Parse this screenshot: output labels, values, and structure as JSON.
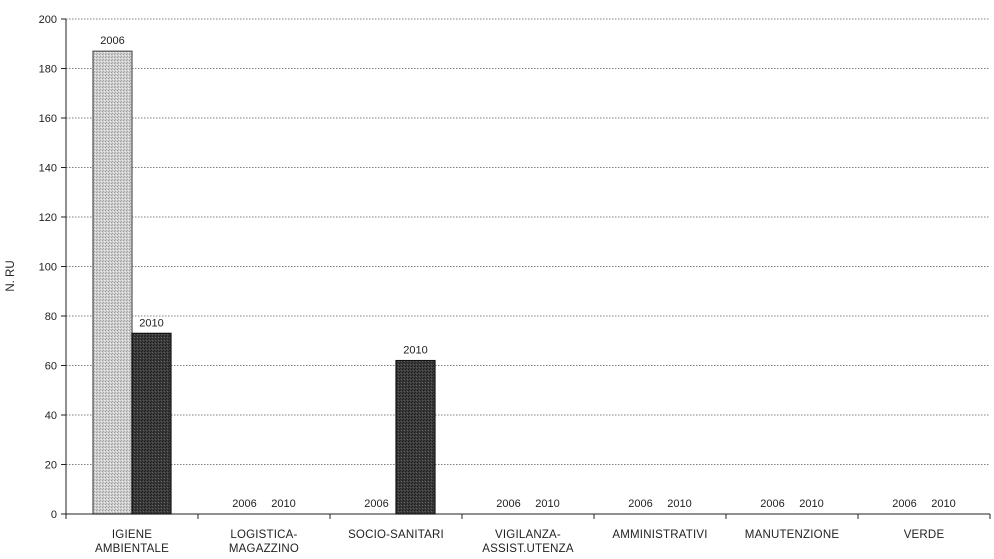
{
  "chart_data": {
    "type": "bar",
    "title": "",
    "xlabel": "",
    "ylabel": "N. RU",
    "ylim": [
      0,
      200
    ],
    "yticks": [
      0,
      20,
      40,
      60,
      80,
      100,
      120,
      140,
      160,
      180,
      200
    ],
    "grid": true,
    "legend": "none",
    "categories": [
      [
        "IGIENE",
        "AMBIENTALE"
      ],
      [
        "LOGISTICA-",
        "MAGAZZINO"
      ],
      [
        "SOCIO-SANITARI"
      ],
      [
        "VIGILANZA-",
        "ASSIST.UTENZA"
      ],
      [
        "AMMINISTRATIVI"
      ],
      [
        "MANUTENZIONE"
      ],
      [
        "VERDE"
      ]
    ],
    "series": [
      {
        "label": "2006",
        "values": [
          187,
          0,
          0,
          0,
          0,
          0,
          0
        ],
        "color": "#c9c9c9",
        "stroke": "#555555"
      },
      {
        "label": "2010",
        "values": [
          73,
          0,
          62,
          0,
          0,
          0,
          0
        ],
        "color": "#3a3a3a",
        "stroke": "#111111"
      }
    ]
  }
}
